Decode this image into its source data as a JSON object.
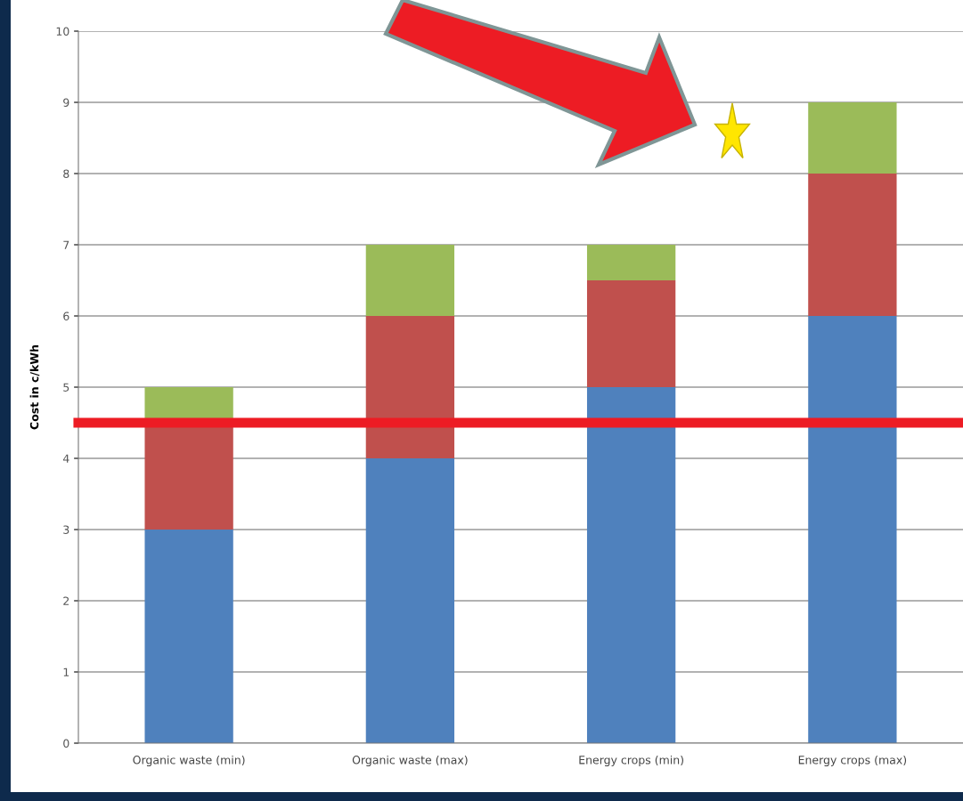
{
  "chart_data": {
    "type": "bar",
    "stacked": true,
    "ylabel": "Cost in c/kWh",
    "categories": [
      "Organic waste (min)",
      "Organic waste (max)",
      "Energy crops (min)",
      "Energy crops (max)"
    ],
    "series": [
      {
        "color": "#4f81bd",
        "values": [
          3,
          4,
          5,
          6
        ]
      },
      {
        "color": "#c0504d",
        "values": [
          1.5,
          2,
          1.5,
          2
        ]
      },
      {
        "color": "#9bbb59",
        "values": [
          0.5,
          1,
          0.5,
          1
        ]
      }
    ],
    "ylim": [
      0,
      10
    ],
    "yticks": [
      0,
      1,
      2,
      3,
      4,
      5,
      6,
      7,
      8,
      9,
      10
    ],
    "grid": "y",
    "legend": false,
    "ref_lines": [
      {
        "axis": "y",
        "value": 4.5,
        "color": "#ed1c24"
      }
    ]
  }
}
